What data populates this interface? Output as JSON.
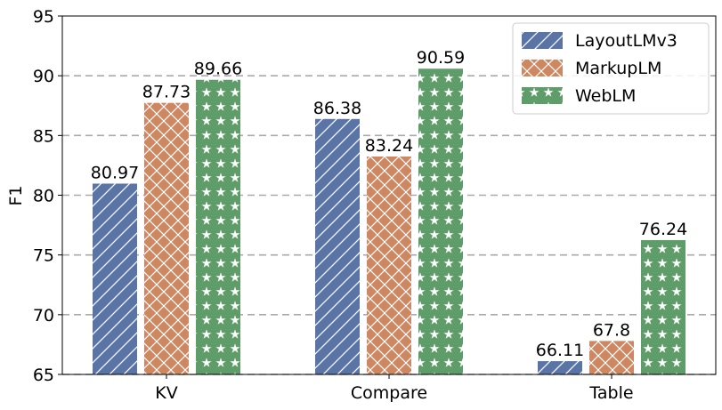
{
  "chart_data": {
    "type": "bar",
    "title": "",
    "xlabel": "",
    "ylabel": "F1",
    "ylim": [
      65,
      95
    ],
    "yticks": [
      65,
      70,
      75,
      80,
      85,
      90,
      95
    ],
    "grid": "horizontal dashed",
    "legend_position": "top-right",
    "categories": [
      "KV",
      "Compare",
      "Table"
    ],
    "series": [
      {
        "name": "LayoutLMv3",
        "color": "#5a74a6",
        "hatch": "diagonal",
        "values": [
          80.97,
          86.38,
          66.11
        ],
        "labels": [
          "80.97",
          "86.38",
          "66.11"
        ]
      },
      {
        "name": "MarkupLM",
        "color": "#cf8762",
        "hatch": "crosshatch",
        "values": [
          87.73,
          83.24,
          67.8
        ],
        "labels": [
          "87.73",
          "83.24",
          "67.8"
        ]
      },
      {
        "name": "WebLM",
        "color": "#5e9c6a",
        "hatch": "stars",
        "values": [
          89.66,
          90.59,
          76.24
        ],
        "labels": [
          "89.66",
          "90.59",
          "76.24"
        ]
      }
    ]
  }
}
